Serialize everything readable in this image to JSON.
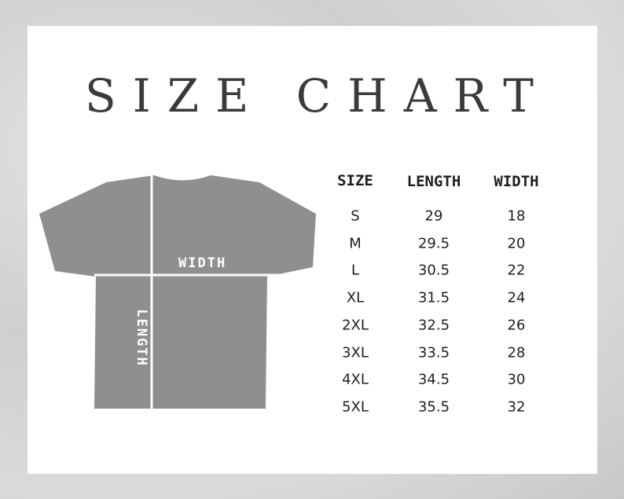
{
  "title": "SIZE CHART",
  "diagram": {
    "width_label": "WIDTH",
    "length_label": "LENGTH",
    "shirt_color": "#8f8f8f"
  },
  "table": {
    "headers": [
      "SIZE",
      "LENGTH",
      "WIDTH"
    ],
    "rows": [
      [
        "S",
        "29",
        "18"
      ],
      [
        "M",
        "29.5",
        "20"
      ],
      [
        "L",
        "30.5",
        "22"
      ],
      [
        "XL",
        "31.5",
        "24"
      ],
      [
        "2XL",
        "32.5",
        "26"
      ],
      [
        "3XL",
        "33.5",
        "28"
      ],
      [
        "4XL",
        "34.5",
        "30"
      ],
      [
        "5XL",
        "35.5",
        "32"
      ]
    ]
  }
}
